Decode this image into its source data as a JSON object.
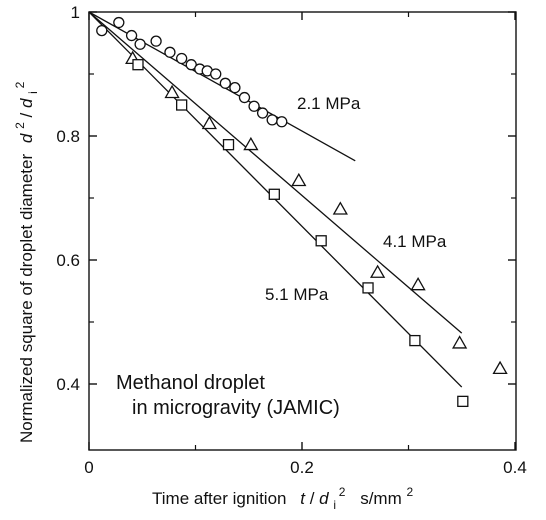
{
  "chart_data": {
    "type": "scatter",
    "title": "",
    "xlim": [
      0,
      0.4
    ],
    "ylim": [
      0.35,
      1.0
    ],
    "x_ticks": [
      "0",
      "0.2",
      "0.4"
    ],
    "y_ticks": [
      "1",
      "0.8",
      "0.6",
      "0.4"
    ],
    "xlabel": {
      "prefix": "Time after ignition",
      "var_t": "t",
      "slash": " /",
      "var_d": "d",
      "sub": "i",
      "sup": "2",
      "unit_pre": "s/mm",
      "unit_sup": "2"
    },
    "ylabel": {
      "prefix": "Normalized square of droplet diameter",
      "d": "d",
      "d_sup": "2",
      "slash": "/",
      "di": "d",
      "di_sub": "i",
      "di_sup": "2"
    },
    "annotation": [
      "Methanol droplet",
      "in microgravity (JAMIC)"
    ],
    "series": [
      {
        "name": "2.1 MPa",
        "marker": "circle",
        "points": [
          [
            0.012,
            0.97
          ],
          [
            0.028,
            0.983
          ],
          [
            0.04,
            0.962
          ],
          [
            0.048,
            0.948
          ],
          [
            0.063,
            0.953
          ],
          [
            0.076,
            0.935
          ],
          [
            0.087,
            0.925
          ],
          [
            0.096,
            0.915
          ],
          [
            0.104,
            0.908
          ],
          [
            0.111,
            0.905
          ],
          [
            0.119,
            0.9
          ],
          [
            0.128,
            0.885
          ],
          [
            0.137,
            0.878
          ],
          [
            0.146,
            0.862
          ],
          [
            0.155,
            0.848
          ],
          [
            0.163,
            0.837
          ],
          [
            0.172,
            0.826
          ],
          [
            0.181,
            0.823
          ]
        ],
        "fit": [
          [
            0,
            1.0
          ],
          [
            0.25,
            0.76
          ]
        ]
      },
      {
        "name": "4.1 MPa",
        "marker": "triangle",
        "points": [
          [
            0.041,
            0.925
          ],
          [
            0.078,
            0.87
          ],
          [
            0.113,
            0.82
          ],
          [
            0.152,
            0.786
          ],
          [
            0.197,
            0.728
          ],
          [
            0.236,
            0.682
          ],
          [
            0.271,
            0.58
          ],
          [
            0.309,
            0.56
          ],
          [
            0.348,
            0.466
          ],
          [
            0.386,
            0.425
          ]
        ],
        "fit": [
          [
            0,
            1.0
          ],
          [
            0.35,
            0.482
          ]
        ]
      },
      {
        "name": "5.1 MPa",
        "marker": "square",
        "points": [
          [
            0.046,
            0.915
          ],
          [
            0.087,
            0.85
          ],
          [
            0.131,
            0.786
          ],
          [
            0.174,
            0.706
          ],
          [
            0.218,
            0.631
          ],
          [
            0.262,
            0.555
          ],
          [
            0.306,
            0.47
          ],
          [
            0.351,
            0.372
          ]
        ],
        "fit": [
          [
            0,
            1.0
          ],
          [
            0.35,
            0.395
          ]
        ]
      }
    ]
  }
}
